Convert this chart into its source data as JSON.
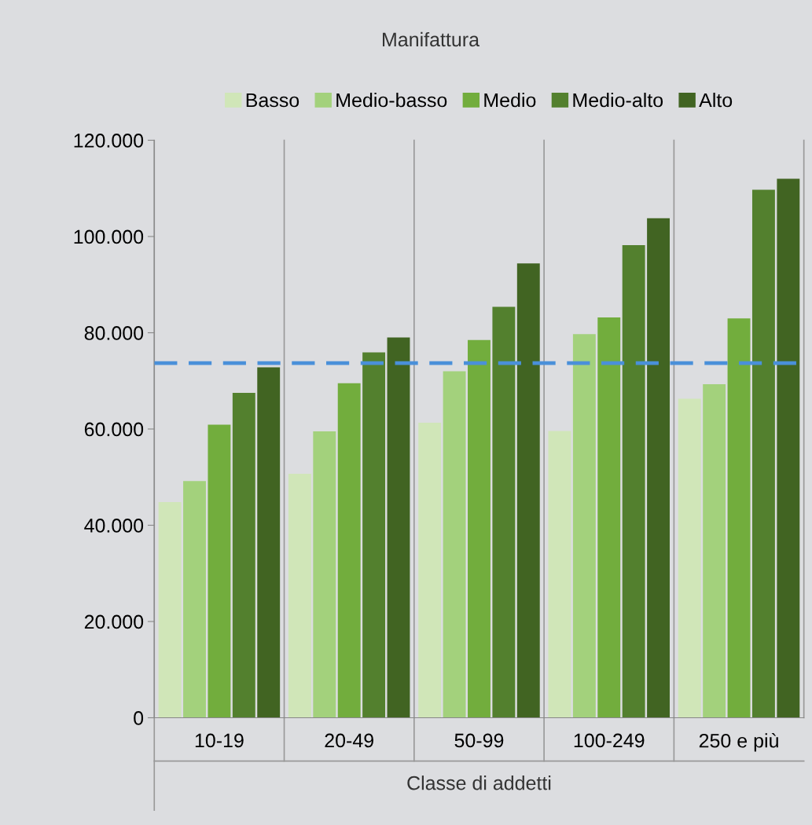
{
  "chart_data": {
    "type": "bar",
    "title": "Manifattura",
    "xlabel": "Classe di addetti",
    "categories": [
      "10-19",
      "20-49",
      "50-99",
      "100-249",
      "250 e più"
    ],
    "series": [
      {
        "name": "Basso",
        "color": "#d0e6b8",
        "values": [
          44800,
          50700,
          61300,
          59600,
          66300
        ]
      },
      {
        "name": "Medio-basso",
        "color": "#a3d17c",
        "values": [
          49200,
          59500,
          72000,
          79700,
          69300
        ]
      },
      {
        "name": "Medio",
        "color": "#72ad3d",
        "values": [
          60900,
          69500,
          78500,
          83200,
          83000
        ]
      },
      {
        "name": "Medio-alto",
        "color": "#53802e",
        "values": [
          67500,
          75900,
          85400,
          98200,
          109700
        ]
      },
      {
        "name": "Alto",
        "color": "#416422",
        "values": [
          72800,
          79000,
          94400,
          103800,
          112000
        ]
      }
    ],
    "ylim": [
      0,
      120000
    ],
    "yticks": [
      {
        "value": 0,
        "label": "0"
      },
      {
        "value": 20000,
        "label": "20.000"
      },
      {
        "value": 40000,
        "label": "40.000"
      },
      {
        "value": 60000,
        "label": "60.000"
      },
      {
        "value": 80000,
        "label": "80.000"
      },
      {
        "value": 100000,
        "label": "100.000"
      },
      {
        "value": 120000,
        "label": "120.000"
      }
    ],
    "ref_lines": [
      {
        "axis": "y",
        "value": 73700,
        "color": "#4a90d9",
        "line_style": "dashed"
      }
    ],
    "grid": false,
    "legend": "top"
  }
}
